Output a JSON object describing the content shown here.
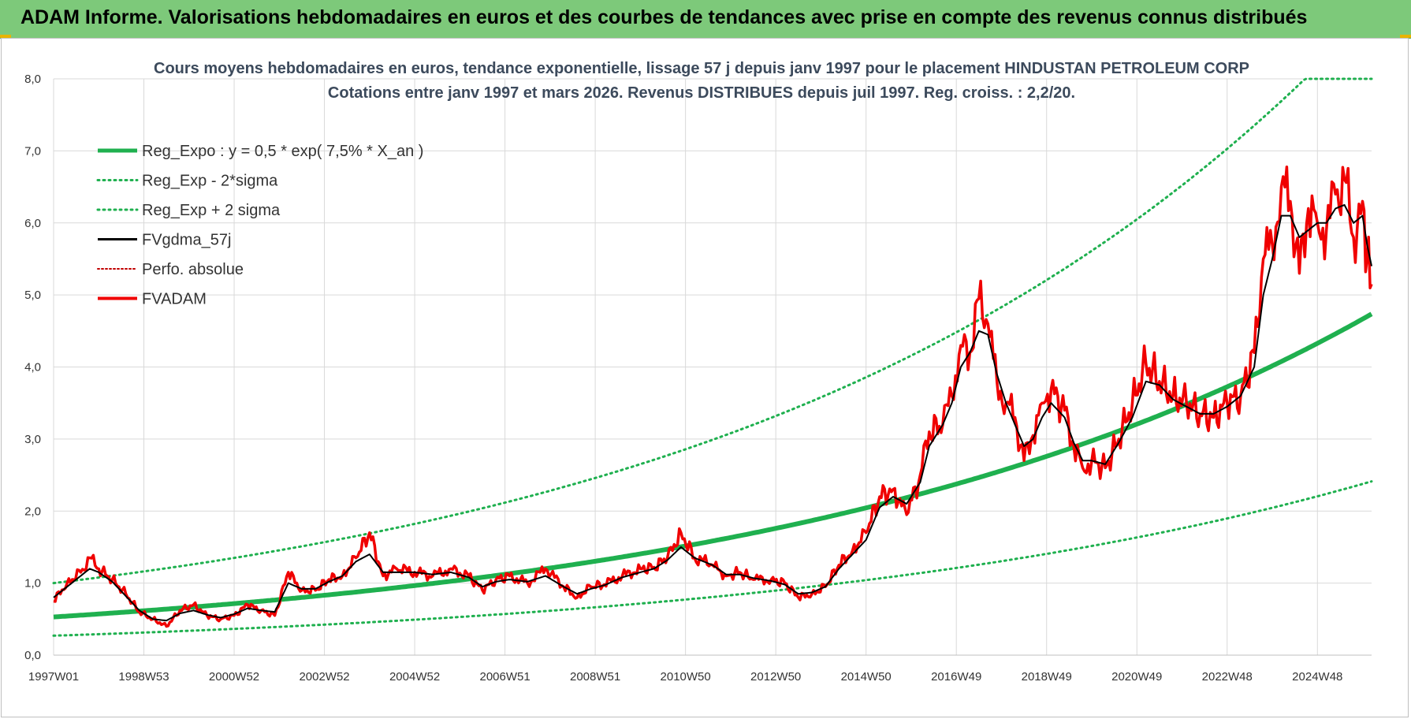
{
  "header": {
    "banner_title": "ADAM Informe. Valorisations hebdomadaires en euros et des courbes de tendances avec prise en compte des revenus connus distribués"
  },
  "colors": {
    "banner": "#7dc97a",
    "reg_expo": "#1fb04f",
    "sigma_lines": "#1fb04f",
    "fvgdma": "#000000",
    "perfo": "#c00000",
    "fvadam": "#f00000",
    "grid": "#d9d9d9"
  },
  "chart_data": {
    "type": "line",
    "title_line1": "Cours moyens hebdomadaires en euros, tendance exponentielle, lissage 57 j depuis janv 1997 pour le placement HINDUSTAN PETROLEUM CORP",
    "title_line2": "Cotations entre janv 1997 et mars 2026. Revenus DISTRIBUES depuis juil 1997. Reg. croiss. : 2,2/20.",
    "xlabel": "",
    "ylabel": "",
    "ylim": [
      0,
      8
    ],
    "x_range_years": [
      1997.0,
      2026.2
    ],
    "y_ticks": [
      "0,0",
      "1,0",
      "2,0",
      "3,0",
      "4,0",
      "5,0",
      "6,0",
      "7,0",
      "8,0"
    ],
    "x_ticks": [
      {
        "label": "1997W01",
        "year": 1997.0
      },
      {
        "label": "1998W53",
        "year": 1999.0
      },
      {
        "label": "2000W52",
        "year": 2001.0
      },
      {
        "label": "2002W52",
        "year": 2003.0
      },
      {
        "label": "2004W52",
        "year": 2005.0
      },
      {
        "label": "2006W51",
        "year": 2007.0
      },
      {
        "label": "2008W51",
        "year": 2009.0
      },
      {
        "label": "2010W50",
        "year": 2011.0
      },
      {
        "label": "2012W50",
        "year": 2013.0
      },
      {
        "label": "2014W50",
        "year": 2015.0
      },
      {
        "label": "2016W49",
        "year": 2017.0
      },
      {
        "label": "2018W49",
        "year": 2019.0
      },
      {
        "label": "2020W49",
        "year": 2021.0
      },
      {
        "label": "2022W48",
        "year": 2023.0
      },
      {
        "label": "2024W48",
        "year": 2025.0
      }
    ],
    "grid": true,
    "legend_position": "top-left",
    "legend": [
      "Reg_Expo : y = 0,5 * exp( 7,5% *  X_an )",
      "Reg_Exp - 2*sigma",
      "Reg_Exp + 2 sigma",
      "FVgdma_57j",
      "Perfo. absolue",
      "FVADAM"
    ],
    "regression": {
      "a": 0.53,
      "rate": 0.075
    },
    "series": [
      {
        "name": "Reg_Expo : y = 0,5 * exp( 7,5% *  X_an )",
        "style": "solid-thick",
        "values_at_ticks": [
          0.53,
          0.62,
          0.72,
          0.83,
          0.96,
          1.11,
          1.29,
          1.5,
          1.74,
          2.02,
          2.34,
          2.72,
          3.15,
          3.65,
          4.24
        ],
        "end_value": 4.79
      },
      {
        "name": "Reg_Exp - 2*sigma",
        "style": "dotted",
        "values_at_ticks": [
          0.27,
          0.31,
          0.36,
          0.42,
          0.48,
          0.56,
          0.65,
          0.75,
          0.87,
          1.01,
          1.17,
          1.36,
          1.58,
          1.83,
          2.12
        ],
        "end_value": 2.52
      },
      {
        "name": "Reg_Exp + 2 sigma",
        "style": "dotted",
        "values_at_ticks": [
          1.0,
          1.16,
          1.35,
          1.56,
          1.81,
          2.1,
          2.43,
          2.82,
          3.27,
          3.8,
          4.4,
          5.11,
          5.93,
          6.88,
          8.0
        ],
        "end_value": 8.0
      },
      {
        "name": "FVADAM",
        "style": "solid",
        "x": [
          1997.0,
          1997.3,
          1997.6,
          1997.8,
          1998.0,
          1998.3,
          1998.6,
          1998.9,
          1999.2,
          1999.5,
          1999.8,
          2000.1,
          2000.4,
          2000.7,
          2001.0,
          2001.3,
          2001.6,
          2001.9,
          2002.2,
          2002.5,
          2002.8,
          2003.1,
          2003.4,
          2003.7,
          2004.0,
          2004.3,
          2004.6,
          2005.0,
          2005.4,
          2005.8,
          2006.2,
          2006.5,
          2006.8,
          2007.1,
          2007.5,
          2007.9,
          2008.3,
          2008.6,
          2008.9,
          2009.2,
          2009.6,
          2010.0,
          2010.3,
          2010.6,
          2010.9,
          2011.2,
          2011.6,
          2011.9,
          2012.2,
          2012.5,
          2012.9,
          2013.2,
          2013.5,
          2013.8,
          2014.1,
          2014.4,
          2014.7,
          2015.0,
          2015.3,
          2015.6,
          2015.9,
          2016.2,
          2016.4,
          2016.7,
          2016.9,
          2017.1,
          2017.3,
          2017.5,
          2017.7,
          2017.9,
          2018.1,
          2018.3,
          2018.5,
          2018.7,
          2018.9,
          2019.1,
          2019.4,
          2019.6,
          2019.8,
          2020.0,
          2020.3,
          2020.6,
          2020.9,
          2021.2,
          2021.5,
          2021.8,
          2022.1,
          2022.4,
          2022.7,
          2023.0,
          2023.3,
          2023.6,
          2023.8,
          2024.0,
          2024.2,
          2024.4,
          2024.6,
          2024.8,
          2025.0,
          2025.2,
          2025.4,
          2025.6,
          2025.8,
          2026.0,
          2026.1,
          2026.2
        ],
        "values": [
          0.75,
          1.0,
          1.15,
          1.35,
          1.2,
          1.05,
          0.85,
          0.6,
          0.5,
          0.4,
          0.62,
          0.7,
          0.55,
          0.5,
          0.55,
          0.7,
          0.62,
          0.55,
          1.15,
          0.9,
          0.9,
          1.05,
          1.1,
          1.35,
          1.7,
          1.1,
          1.2,
          1.15,
          1.1,
          1.2,
          1.1,
          0.9,
          1.05,
          1.1,
          1.0,
          1.2,
          0.95,
          0.8,
          0.95,
          0.98,
          1.1,
          1.2,
          1.22,
          1.35,
          1.7,
          1.35,
          1.25,
          1.1,
          1.15,
          1.05,
          1.05,
          1.0,
          0.8,
          0.85,
          0.95,
          1.25,
          1.45,
          1.7,
          2.2,
          2.3,
          1.95,
          2.5,
          3.1,
          3.2,
          3.6,
          4.3,
          4.2,
          4.95,
          4.6,
          3.8,
          3.5,
          3.3,
          2.7,
          3.05,
          3.5,
          3.7,
          3.4,
          2.9,
          2.6,
          2.7,
          2.6,
          3.0,
          3.5,
          4.05,
          3.8,
          3.6,
          3.5,
          3.35,
          3.3,
          3.5,
          3.6,
          4.2,
          5.5,
          5.7,
          6.5,
          6.3,
          5.3,
          6.2,
          6.0,
          5.9,
          6.4,
          6.6,
          5.8,
          6.3,
          5.5,
          5.15
        ]
      },
      {
        "name": "FVgdma_57j",
        "style": "solid-thin",
        "x": [
          1997.0,
          1997.3,
          1997.6,
          1997.8,
          1998.0,
          1998.3,
          1998.6,
          1998.9,
          1999.2,
          1999.5,
          1999.8,
          2000.1,
          2000.4,
          2000.7,
          2001.0,
          2001.3,
          2001.6,
          2001.9,
          2002.2,
          2002.5,
          2002.8,
          2003.1,
          2003.4,
          2003.7,
          2004.0,
          2004.3,
          2004.6,
          2005.0,
          2005.4,
          2005.8,
          2006.2,
          2006.5,
          2006.8,
          2007.1,
          2007.5,
          2007.9,
          2008.3,
          2008.6,
          2008.9,
          2009.2,
          2009.6,
          2010.0,
          2010.3,
          2010.6,
          2010.9,
          2011.2,
          2011.6,
          2011.9,
          2012.2,
          2012.5,
          2012.9,
          2013.2,
          2013.5,
          2013.8,
          2014.1,
          2014.4,
          2014.7,
          2015.0,
          2015.3,
          2015.6,
          2015.9,
          2016.2,
          2016.4,
          2016.7,
          2016.9,
          2017.1,
          2017.3,
          2017.5,
          2017.7,
          2017.9,
          2018.1,
          2018.3,
          2018.5,
          2018.7,
          2018.9,
          2019.1,
          2019.4,
          2019.6,
          2019.8,
          2020.0,
          2020.3,
          2020.6,
          2020.9,
          2021.2,
          2021.5,
          2021.8,
          2022.1,
          2022.4,
          2022.7,
          2023.0,
          2023.3,
          2023.6,
          2023.8,
          2024.0,
          2024.2,
          2024.4,
          2024.6,
          2024.8,
          2025.0,
          2025.2,
          2025.4,
          2025.6,
          2025.8,
          2026.0,
          2026.1,
          2026.2
        ],
        "values": [
          0.8,
          0.95,
          1.1,
          1.2,
          1.15,
          1.02,
          0.82,
          0.62,
          0.5,
          0.48,
          0.58,
          0.62,
          0.56,
          0.52,
          0.57,
          0.65,
          0.62,
          0.6,
          1.0,
          0.92,
          0.92,
          1.02,
          1.1,
          1.3,
          1.4,
          1.15,
          1.15,
          1.15,
          1.12,
          1.15,
          1.08,
          0.95,
          1.02,
          1.05,
          1.02,
          1.1,
          0.95,
          0.85,
          0.92,
          0.97,
          1.08,
          1.15,
          1.2,
          1.32,
          1.5,
          1.35,
          1.25,
          1.12,
          1.12,
          1.07,
          1.03,
          0.98,
          0.85,
          0.87,
          0.95,
          1.2,
          1.4,
          1.6,
          2.05,
          2.2,
          2.1,
          2.4,
          2.9,
          3.2,
          3.5,
          4.0,
          4.2,
          4.5,
          4.45,
          3.9,
          3.5,
          3.2,
          2.9,
          3.0,
          3.3,
          3.5,
          3.3,
          2.95,
          2.7,
          2.7,
          2.65,
          2.95,
          3.3,
          3.8,
          3.75,
          3.55,
          3.45,
          3.35,
          3.35,
          3.45,
          3.6,
          4.0,
          5.0,
          5.5,
          6.1,
          6.1,
          5.8,
          5.9,
          6.0,
          6.0,
          6.2,
          6.25,
          6.0,
          6.1,
          5.7,
          5.4
        ]
      },
      {
        "name": "Perfo. absolue",
        "style": "dotted-red",
        "values": []
      }
    ]
  }
}
